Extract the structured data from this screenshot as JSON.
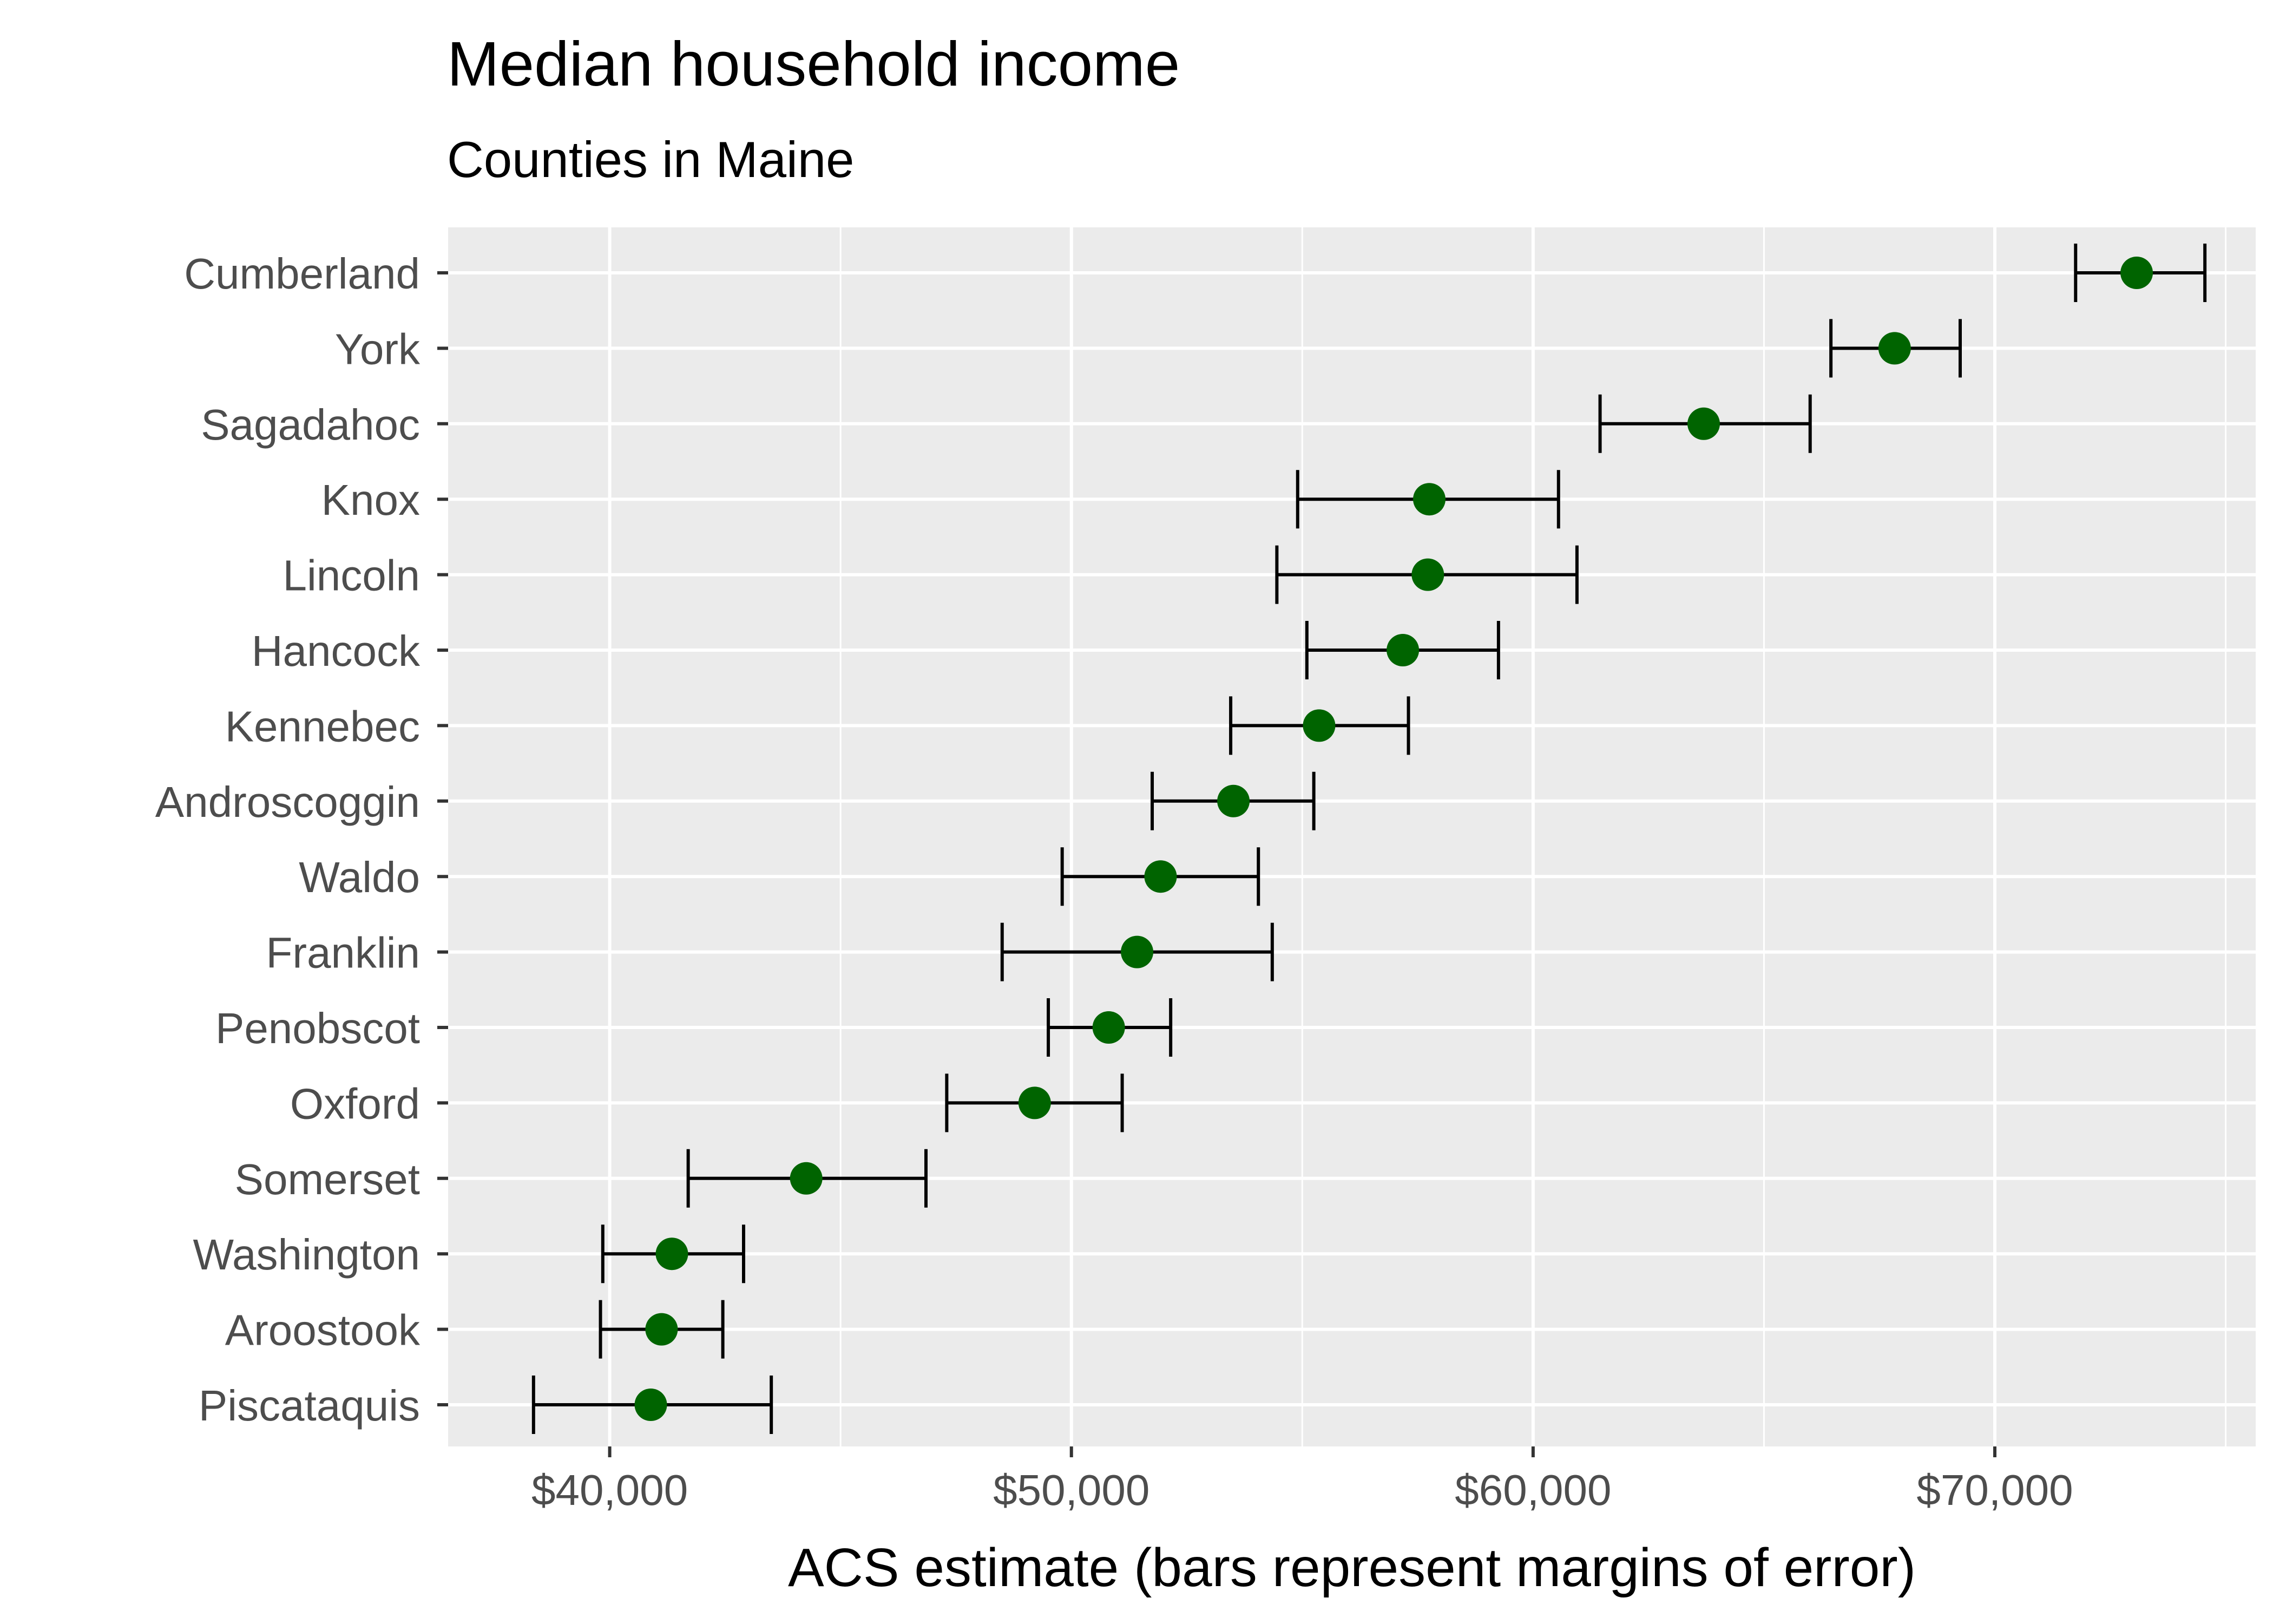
{
  "chart_data": {
    "type": "scatter",
    "title": "Median household income",
    "subtitle": "Counties in Maine",
    "xlabel": "ACS estimate (bars represent margins of error)",
    "ylabel": "",
    "xlim": [
      36500,
      75650
    ],
    "x_ticks": [
      40000,
      50000,
      60000,
      70000
    ],
    "x_tick_labels": [
      "$40,000",
      "$50,000",
      "$60,000",
      "$70,000"
    ],
    "grid": true,
    "legend": "none",
    "colors": {
      "panel": "#ebebeb",
      "grid": "#ffffff",
      "point": "#006400",
      "errorbar": "#000000",
      "tick_label": "#4d4d4d"
    },
    "categories": [
      "Cumberland",
      "York",
      "Sagadahoc",
      "Knox",
      "Lincoln",
      "Hancock",
      "Kennebec",
      "Androscoggin",
      "Waldo",
      "Franklin",
      "Penobscot",
      "Oxford",
      "Somerset",
      "Washington",
      "Aroostook",
      "Piscataquis"
    ],
    "series": [
      {
        "estimate": [
          73072,
          67830,
          63694,
          57751,
          57720,
          57178,
          55365,
          53509,
          51931,
          51422,
          50808,
          49204,
          44256,
          41347,
          41123,
          40890
        ],
        "moe_low": [
          71750,
          66450,
          61450,
          54900,
          54450,
          55100,
          53450,
          51750,
          49800,
          48500,
          49500,
          47300,
          41700,
          39850,
          39800,
          38350
        ],
        "moe_high": [
          74550,
          69250,
          66000,
          60550,
          60950,
          59250,
          57300,
          55250,
          54050,
          54350,
          52150,
          51100,
          46850,
          42900,
          42450,
          43500
        ]
      }
    ]
  }
}
